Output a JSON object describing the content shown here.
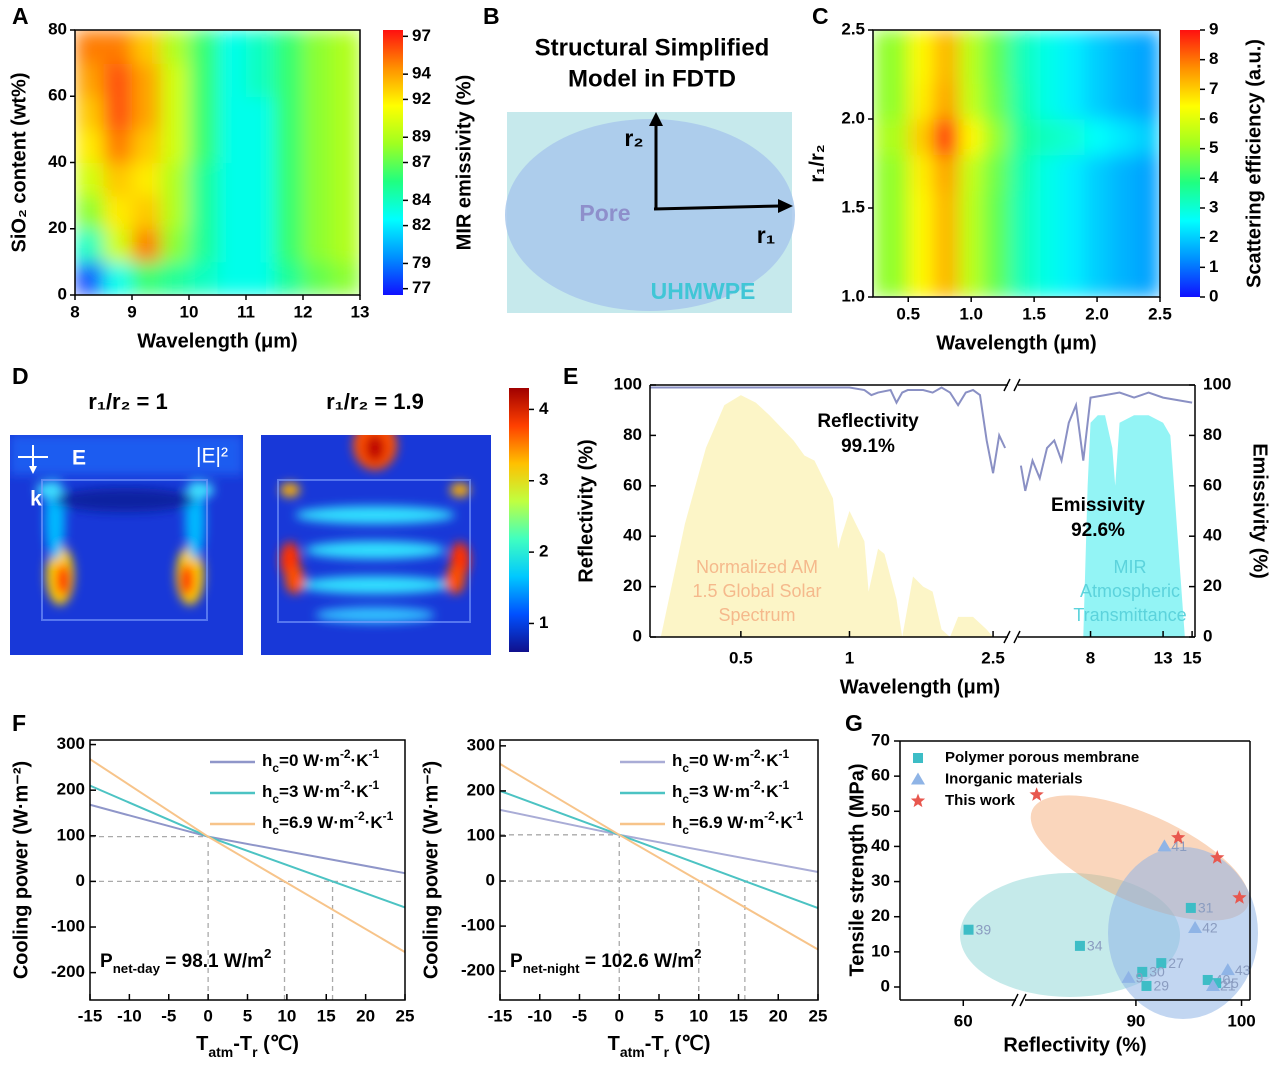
{
  "chart_data": [
    {
      "type": "heatmap",
      "label": "A",
      "xlabel": "Wavelength (μm)",
      "ylabel": "SiO₂ content (wt%)",
      "colorbar_label": "MIR emissivity (%)",
      "xlim": [
        8,
        13
      ],
      "xticks": [
        8,
        9,
        10,
        11,
        12,
        13
      ],
      "ylim": [
        0,
        80
      ],
      "yticks": [
        0,
        20,
        40,
        60,
        80
      ],
      "x_edges": [
        8,
        8.5,
        9,
        9.5,
        10,
        10.5,
        11,
        11.5,
        12,
        12.5,
        13
      ],
      "y_edges": [
        0,
        10,
        20,
        30,
        40,
        50,
        60,
        70,
        80
      ],
      "z": [
        [
          78,
          83,
          86,
          85,
          84,
          83,
          83,
          85,
          87,
          88
        ],
        [
          84,
          90,
          95,
          88,
          85,
          83,
          83,
          86,
          88,
          89
        ],
        [
          88,
          92,
          93,
          89,
          85,
          83,
          83,
          86,
          88,
          89
        ],
        [
          90,
          93,
          92,
          89,
          85,
          83,
          83,
          86,
          88,
          89
        ],
        [
          92,
          95,
          93,
          90,
          86,
          83,
          83,
          86,
          88,
          89
        ],
        [
          93,
          96,
          94,
          90,
          86,
          83,
          83,
          86,
          88,
          89
        ],
        [
          94,
          96,
          94,
          90,
          86,
          83,
          84,
          86,
          88,
          89
        ],
        [
          95,
          95,
          93,
          89,
          86,
          83,
          84,
          86,
          88,
          89
        ]
      ],
      "clim": [
        76.5,
        97.5
      ],
      "cticks": [
        77,
        79,
        82,
        84,
        87,
        89,
        92,
        94,
        97
      ],
      "colormap": [
        "#1010ff",
        "#0090ff",
        "#00ffff",
        "#20ff80",
        "#a0ff20",
        "#ffff00",
        "#ff9000",
        "#ff1010"
      ]
    },
    {
      "type": "diagram",
      "label": "B",
      "title": [
        "Structural Simplified",
        "Model in FDTD"
      ],
      "r2": "r₂",
      "r1": "r₁",
      "pore": "Pore",
      "matrix": "UHMWPE"
    },
    {
      "type": "heatmap",
      "label": "C",
      "xlabel": "Wavelength (μm)",
      "ylabel": "r₁/r₂",
      "colorbar_label": "Scattering efficiency (a.u.)",
      "xlim": [
        0.22,
        2.5
      ],
      "xticks": [
        0.5,
        {
          "value": 1,
          "label": "1.0"
        },
        1.5,
        {
          "value": 2,
          "label": "2.0"
        },
        2.5
      ],
      "ylim": [
        1,
        2.5
      ],
      "yticks": [
        {
          "value": 1,
          "label": "1.0"
        },
        1.5,
        {
          "value": 2,
          "label": "2.0"
        },
        2.5
      ],
      "x_edges": [
        0.22,
        0.5,
        0.7,
        0.9,
        1.1,
        1.3,
        1.5,
        1.7,
        1.9,
        2.1,
        2.3,
        2.5
      ],
      "y_edges": [
        1,
        1.2,
        1.4,
        1.6,
        1.8,
        2.0,
        2.2,
        2.5
      ],
      "z": [
        [
          5,
          6.5,
          7.3,
          5.5,
          4.5,
          3.3,
          2.8,
          2.4,
          2.0,
          1.7,
          1.5
        ],
        [
          5,
          6.5,
          7.3,
          5.5,
          4.5,
          3.3,
          2.8,
          2.4,
          2.0,
          1.7,
          1.5
        ],
        [
          5,
          6.5,
          7.3,
          5.5,
          4.5,
          3.3,
          2.8,
          2.4,
          2.0,
          1.7,
          1.5
        ],
        [
          5,
          6.6,
          7.5,
          5.6,
          4.6,
          3.4,
          2.8,
          2.4,
          2.0,
          1.7,
          1.5
        ],
        [
          5.3,
          7,
          9,
          6.5,
          5,
          3.6,
          3.2,
          3,
          2.6,
          2.3,
          2
        ],
        [
          5,
          6.6,
          7.5,
          5.6,
          4.6,
          3.4,
          2.8,
          2.4,
          2.0,
          1.7,
          1.5
        ],
        [
          5,
          6.5,
          7.3,
          5.5,
          4.5,
          3.3,
          2.8,
          2.4,
          2.0,
          1.7,
          1.5
        ]
      ],
      "clim": [
        0,
        9
      ],
      "cticks": [
        0,
        1,
        2,
        3,
        4,
        5,
        6,
        7,
        8,
        9
      ],
      "colormap": [
        "#1010ff",
        "#0090ff",
        "#00ffff",
        "#20ff80",
        "#a0ff20",
        "#ffff00",
        "#ff9000",
        "#ff1010"
      ]
    },
    {
      "type": "field-map",
      "label": "D",
      "titles": [
        "r₁/r₂ = 1",
        "r₁/r₂ = 1.9"
      ],
      "field_label": "E",
      "wave_label": "k",
      "quantity": "|E|²",
      "clim": [
        0.6,
        4.3
      ],
      "cticks": [
        1,
        2,
        3,
        4
      ],
      "colormap": [
        "#10108c",
        "#0050ff",
        "#00c8ff",
        "#40ffc0",
        "#c0ff40",
        "#ffc000",
        "#ff4000",
        "#a00000"
      ]
    },
    {
      "type": "spectrum",
      "label": "E",
      "xlabel": "Wavelength (μm)",
      "ylabel": "Reflectivity (%)",
      "y2label": "Emissivity (%)",
      "ylim": [
        0,
        100
      ],
      "yticks": [
        0,
        20,
        40,
        60,
        80,
        100
      ],
      "y2lim": [
        0,
        100
      ],
      "y2ticks": [
        0,
        20,
        40,
        60,
        80,
        100
      ],
      "x_segments": [
        {
          "xlim": [
            0.28,
            2.75
          ],
          "log": true,
          "xticks": [
            0.5,
            1,
            2.5
          ]
        },
        {
          "xlim": [
            3,
            15.2
          ],
          "log": false,
          "xticks": [
            8,
            13,
            15
          ]
        }
      ],
      "series": [
        {
          "kind": "area",
          "segment": 0,
          "color": "#fbf1b4",
          "text_color": "#f5b98c",
          "label_lines": [
            "Normalized AM",
            "1.5 Global Solar",
            "Spectrum"
          ],
          "x": [
            0.3,
            0.35,
            0.4,
            0.45,
            0.5,
            0.55,
            0.6,
            0.7,
            0.75,
            0.8,
            0.9,
            0.93,
            0.95,
            1.0,
            1.1,
            1.13,
            1.2,
            1.25,
            1.35,
            1.4,
            1.5,
            1.6,
            1.7,
            1.8,
            1.9,
            2.0,
            2.2,
            2.4,
            2.5
          ],
          "values": [
            0,
            45,
            75,
            92,
            96,
            93,
            88,
            78,
            72,
            70,
            55,
            35,
            40,
            50,
            38,
            18,
            35,
            33,
            15,
            0,
            24,
            20,
            18,
            3,
            0,
            8,
            8,
            3,
            0
          ]
        },
        {
          "kind": "area",
          "segment": 1,
          "axis": "y2",
          "color": "#6ff0f2",
          "text_color": "#5cd3dc",
          "label_lines": [
            "MIR",
            "Atmospheric",
            "Transmittance"
          ],
          "x": [
            7.5,
            7.8,
            8,
            8.5,
            9,
            9.5,
            9.7,
            10,
            11,
            12,
            13,
            13.5,
            14,
            14.5
          ],
          "values": [
            0,
            60,
            85,
            88,
            88,
            75,
            60,
            85,
            88,
            88,
            85,
            80,
            40,
            0
          ]
        },
        {
          "kind": "line",
          "segment": 0,
          "color": "#8a90c4",
          "x": [
            0.28,
            0.35,
            0.5,
            0.7,
            1.0,
            1.1,
            1.15,
            1.2,
            1.3,
            1.35,
            1.4,
            1.45,
            1.6,
            1.7,
            1.8,
            1.9,
            2.0,
            2.1,
            2.2,
            2.3,
            2.4,
            2.5,
            2.6,
            2.7
          ],
          "values": [
            99,
            99,
            99,
            99,
            99,
            98,
            96,
            97,
            98,
            93,
            97,
            98,
            98,
            97,
            99,
            97,
            92,
            97,
            98,
            96,
            78,
            65,
            80,
            75
          ]
        },
        {
          "kind": "line",
          "segment": 1,
          "axis": "y2",
          "color": "#8a90c4",
          "x": [
            3.2,
            3.5,
            4,
            4.5,
            5,
            5.5,
            6,
            6.5,
            7,
            7.5,
            8,
            9,
            10,
            11,
            12,
            13,
            14,
            15
          ],
          "values": [
            68,
            58,
            70,
            63,
            75,
            78,
            70,
            85,
            92,
            70,
            95,
            96,
            97,
            95,
            97,
            95,
            94,
            93
          ]
        }
      ],
      "annotations": [
        [
          "Reflectivity",
          "99.1%"
        ],
        [
          "Emissivity",
          "92.6%"
        ]
      ]
    },
    {
      "type": "line",
      "label": "F",
      "xlabel": [
        {
          "t": "T"
        },
        {
          "t": "atm",
          "sub": true
        },
        {
          "t": "-T"
        },
        {
          "t": "r",
          "sub": true
        },
        {
          "t": " (℃)"
        }
      ],
      "ylabel": "Cooling power (W·m⁻²)",
      "xlim": [
        -15,
        25
      ],
      "xticks": [
        -15,
        -10,
        -5,
        0,
        5,
        10,
        15,
        20,
        25
      ],
      "ylim": [
        -260,
        310
      ],
      "yticks": [
        -200,
        -100,
        0,
        100,
        200,
        300
      ],
      "x": [
        -15,
        0,
        25
      ],
      "series": [
        {
          "name": [
            {
              "t": "h"
            },
            {
              "t": "c",
              "sub": true
            },
            {
              "t": "=0 W·m"
            },
            {
              "t": "-2",
              "sup": true
            },
            {
              "t": "·K"
            },
            {
              "t": "-1",
              "sup": true
            }
          ],
          "color": "#8f96c9",
          "values": [
            168,
            98.1,
            18
          ]
        },
        {
          "name": [
            {
              "t": "h"
            },
            {
              "t": "c",
              "sub": true
            },
            {
              "t": "=3 W·m"
            },
            {
              "t": "-2",
              "sup": true
            },
            {
              "t": "·K"
            },
            {
              "t": "-1",
              "sup": true
            }
          ],
          "color": "#4cc3c3",
          "values": [
            210,
            98.1,
            -57
          ]
        },
        {
          "name": [
            {
              "t": "h"
            },
            {
              "t": "c",
              "sub": true
            },
            {
              "t": "=6.9 W·m"
            },
            {
              "t": "-2",
              "sup": true
            },
            {
              "t": "·K"
            },
            {
              "t": "-1",
              "sup": true
            }
          ],
          "color": "#f7c48a",
          "values": [
            268,
            98.1,
            -155
          ]
        }
      ],
      "reference_points": [
        [
          0,
          98.1
        ],
        [
          9.7,
          0
        ],
        [
          15.8,
          0
        ]
      ],
      "annotation": [
        {
          "t": "P"
        },
        {
          "t": "net-day",
          "sub": true
        },
        {
          "t": " = 98.1 W/m"
        },
        {
          "t": "2",
          "sup": true
        }
      ]
    },
    {
      "type": "line",
      "xlabel": [
        {
          "t": "T"
        },
        {
          "t": "atm",
          "sub": true
        },
        {
          "t": "-T"
        },
        {
          "t": "r",
          "sub": true
        },
        {
          "t": " (℃)"
        }
      ],
      "ylabel": "Cooling power (W·m⁻²)",
      "xlim": [
        -15,
        25
      ],
      "xticks": [
        -15,
        -10,
        -5,
        0,
        5,
        10,
        15,
        20,
        25
      ],
      "ylim": [
        -264,
        313
      ],
      "yticks": [
        -200,
        -100,
        0,
        100,
        200,
        300
      ],
      "x": [
        -15,
        0,
        25
      ],
      "series": [
        {
          "name": [
            {
              "t": "h"
            },
            {
              "t": "c",
              "sub": true
            },
            {
              "t": "=0 W·m"
            },
            {
              "t": "-2",
              "sup": true
            },
            {
              "t": "·K"
            },
            {
              "t": "-1",
              "sup": true
            }
          ],
          "color": "#a9acd6",
          "values": [
            158,
            102.6,
            20
          ]
        },
        {
          "name": [
            {
              "t": "h"
            },
            {
              "t": "c",
              "sub": true
            },
            {
              "t": "=3 W·m"
            },
            {
              "t": "-2",
              "sup": true
            },
            {
              "t": "·K"
            },
            {
              "t": "-1",
              "sup": true
            }
          ],
          "color": "#4cc3c3",
          "values": [
            200,
            102.6,
            -60
          ]
        },
        {
          "name": [
            {
              "t": "h"
            },
            {
              "t": "c",
              "sub": true
            },
            {
              "t": "=6.9 W·m"
            },
            {
              "t": "-2",
              "sup": true
            },
            {
              "t": "·K"
            },
            {
              "t": "-1",
              "sup": true
            }
          ],
          "color": "#f7c48a",
          "values": [
            260,
            102.6,
            -152
          ]
        }
      ],
      "reference_points": [
        [
          0,
          102.6
        ],
        [
          10,
          0
        ],
        [
          15.8,
          0
        ]
      ],
      "annotation": [
        {
          "t": "P"
        },
        {
          "t": "net-night",
          "sub": true
        },
        {
          "t": " = 102.6 W/m"
        },
        {
          "t": "2",
          "sup": true
        }
      ]
    },
    {
      "type": "scatter",
      "label": "G",
      "xlabel": "Reflectivity (%)",
      "ylabel": "Tensile strength (MPa)",
      "x_segments": [
        {
          "xlim": [
            54,
            65
          ],
          "xticks": [
            60
          ]
        },
        {
          "xlim": [
            79.5,
            100.8
          ],
          "xticks": [
            90,
            100
          ]
        }
      ],
      "ylim": [
        -3.7,
        70
      ],
      "yticks": [
        0,
        10,
        20,
        30,
        40,
        50,
        60,
        70
      ],
      "series": [
        {
          "name": "Polymer porous membrane",
          "color": "#3dbdc6",
          "marker": "square",
          "x": [
            60.5,
            84.7,
            92.4,
            90.6,
            91.0,
            95.2,
            96.8,
            97.6
          ],
          "values": [
            16.3,
            11.7,
            6.8,
            4.3,
            0.3,
            22.5,
            2,
            1.1
          ],
          "point_labels": [
            "39",
            "34",
            "27",
            "30",
            "29",
            "31",
            "40",
            "25"
          ]
        },
        {
          "name": "Inorganic materials",
          "color": "#8fb4e6",
          "marker": "triangle",
          "x": [
            92.7,
            95.6,
            98.7,
            89.3,
            97.3
          ],
          "values": [
            40,
            16.8,
            4.8,
            2.6,
            0.3
          ],
          "point_labels": [
            "41",
            "42",
            "43",
            "9",
            "21"
          ]
        },
        {
          "name": "This work",
          "color": "#e8574e",
          "marker": "star",
          "x": [
            80.6,
            94.0,
            97.7,
            99.8
          ],
          "values": [
            54.7,
            42.5,
            36.8,
            25.4
          ]
        }
      ]
    }
  ]
}
